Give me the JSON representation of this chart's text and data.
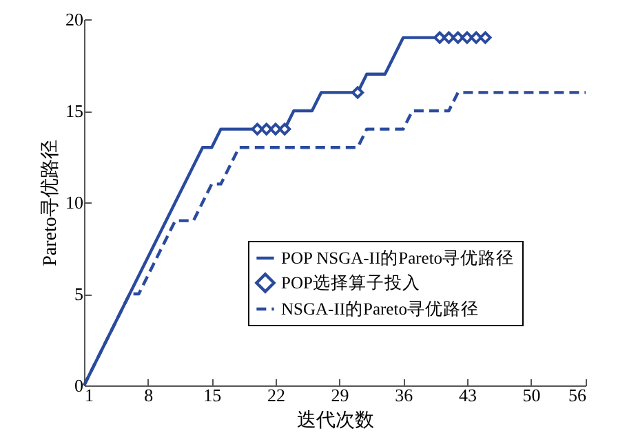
{
  "chart_data": {
    "type": "line",
    "xlabel": "迭代次数",
    "ylabel": "Pareto寻优路径",
    "xlim": [
      1,
      56
    ],
    "xticks": [
      1,
      8,
      15,
      22,
      29,
      36,
      43,
      50,
      56
    ],
    "ylim": [
      0,
      20
    ],
    "yticks": [
      0,
      5,
      10,
      15,
      20
    ],
    "grid": false,
    "legend": "bottom right",
    "series": [
      {
        "name": "POP NSGA-II的Pareto寻优路径",
        "type": "line",
        "line_style": "solid",
        "color": "#2a4a9e",
        "x": [
          1,
          14,
          15,
          16,
          23,
          24,
          26,
          27,
          31,
          32,
          34,
          36,
          45
        ],
        "values": [
          0,
          13,
          13,
          14,
          14,
          15,
          15,
          16,
          16,
          17,
          17,
          19,
          19
        ]
      },
      {
        "name": "POP选择算子投入",
        "type": "scatter",
        "marker": "diamond",
        "color": "#2a4a9e",
        "x": [
          20,
          21,
          22,
          23,
          31,
          40,
          41,
          42,
          43,
          44,
          45
        ],
        "values": [
          14,
          14,
          14,
          14,
          16,
          19,
          19,
          19,
          19,
          19,
          19
        ]
      },
      {
        "name": "NSGA-II的Pareto寻优路径",
        "type": "line",
        "line_style": "dashed",
        "color": "#2a4a9e",
        "x": [
          1,
          6,
          7,
          11,
          13,
          15,
          16,
          18,
          31,
          32,
          36,
          37,
          41,
          42,
          56
        ],
        "values": [
          0,
          5,
          5,
          9,
          9,
          11,
          11,
          13,
          13,
          14,
          14,
          15,
          15,
          16,
          16
        ]
      }
    ]
  }
}
